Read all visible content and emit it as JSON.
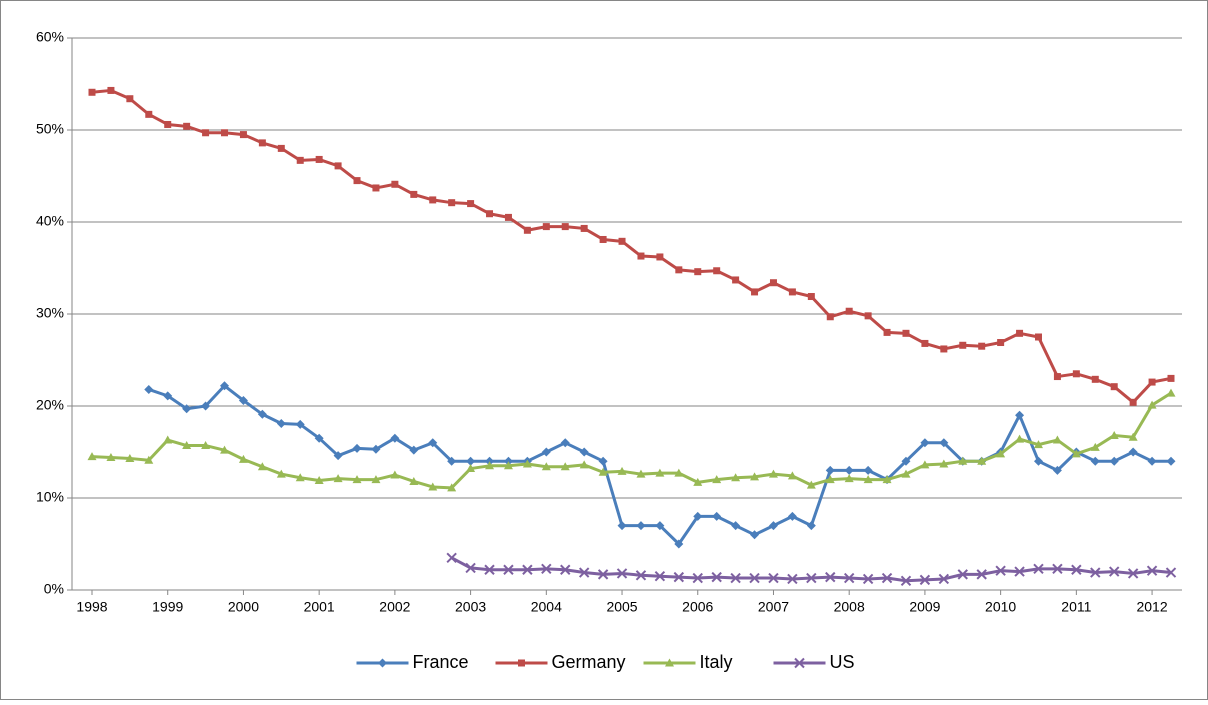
{
  "chart_data": {
    "type": "line",
    "categories": [
      "1998",
      null,
      null,
      null,
      "1999",
      null,
      null,
      null,
      "2000",
      null,
      null,
      null,
      "2001",
      null,
      null,
      null,
      "2002",
      null,
      null,
      null,
      "2003",
      null,
      null,
      null,
      "2004",
      null,
      null,
      null,
      "2005",
      null,
      null,
      null,
      "2006",
      null,
      null,
      null,
      "2007",
      null,
      null,
      null,
      "2008",
      null,
      null,
      null,
      "2009",
      null,
      null,
      null,
      "2010",
      null,
      null,
      null,
      "2011",
      null,
      null,
      null,
      "2012",
      null
    ],
    "series": [
      {
        "name": "France",
        "color": "#4a7ebb",
        "marker": "diamond",
        "values": [
          null,
          null,
          null,
          21.8,
          21.1,
          19.7,
          20.0,
          22.2,
          20.6,
          19.1,
          18.1,
          18.0,
          16.5,
          14.6,
          15.4,
          15.3,
          16.5,
          15.2,
          16.0,
          14.0,
          14.0,
          14.0,
          14.0,
          14.0,
          15.0,
          16.0,
          15.0,
          14.0,
          7.0,
          7.0,
          7.0,
          5.0,
          8.0,
          8.0,
          7.0,
          6.0,
          7.0,
          8.0,
          7.0,
          13.0,
          13.0,
          13.0,
          12.0,
          14.0,
          16.0,
          16.0,
          14.0,
          14.0,
          15.0,
          19.0,
          14.0,
          13.0,
          15.0,
          14.0,
          14.0,
          15.0,
          14.0,
          14.0
        ]
      },
      {
        "name": "Germany",
        "color": "#be4b48",
        "marker": "square",
        "values": [
          54.1,
          54.3,
          53.4,
          51.7,
          50.6,
          50.4,
          49.7,
          49.7,
          49.5,
          48.6,
          48.0,
          46.7,
          46.8,
          46.1,
          44.5,
          43.7,
          44.1,
          43.0,
          42.4,
          42.1,
          42.0,
          40.9,
          40.5,
          39.1,
          39.5,
          39.5,
          39.3,
          38.1,
          37.9,
          36.3,
          36.2,
          34.8,
          34.6,
          34.7,
          33.7,
          32.4,
          33.4,
          32.4,
          31.9,
          29.7,
          30.3,
          29.8,
          28.0,
          27.9,
          26.8,
          26.2,
          26.6,
          26.5,
          26.9,
          27.9,
          27.5,
          23.2,
          23.5,
          22.9,
          22.1,
          20.4,
          22.6,
          23.0
        ]
      },
      {
        "name": "Italy",
        "color": "#98b954",
        "marker": "triangle",
        "values": [
          14.5,
          14.4,
          14.3,
          14.1,
          16.3,
          15.7,
          15.7,
          15.2,
          14.2,
          13.4,
          12.6,
          12.2,
          11.9,
          12.1,
          12.0,
          12.0,
          12.5,
          11.8,
          11.2,
          11.1,
          13.2,
          13.5,
          13.5,
          13.7,
          13.4,
          13.4,
          13.6,
          12.8,
          12.9,
          12.6,
          12.7,
          12.7,
          11.7,
          12.0,
          12.2,
          12.3,
          12.6,
          12.4,
          11.4,
          12.0,
          12.1,
          12.0,
          12.0,
          12.6,
          13.6,
          13.7,
          14.0,
          14.0,
          14.8,
          16.4,
          15.8,
          16.3,
          14.8,
          15.5,
          16.8,
          16.6,
          20.1,
          21.4
        ]
      },
      {
        "name": "US",
        "color": "#7d60a0",
        "marker": "x",
        "values": [
          null,
          null,
          null,
          null,
          null,
          null,
          null,
          null,
          null,
          null,
          null,
          null,
          null,
          null,
          null,
          null,
          null,
          null,
          null,
          3.5,
          2.4,
          2.2,
          2.2,
          2.2,
          2.3,
          2.2,
          1.9,
          1.7,
          1.8,
          1.6,
          1.5,
          1.4,
          1.3,
          1.4,
          1.3,
          1.3,
          1.3,
          1.2,
          1.3,
          1.4,
          1.3,
          1.2,
          1.3,
          1.0,
          1.1,
          1.2,
          1.7,
          1.7,
          2.1,
          2.0,
          2.3,
          2.3,
          2.2,
          1.9,
          2.0,
          1.8,
          2.1,
          1.9
        ]
      }
    ],
    "ylim": [
      0,
      60
    ],
    "yticks": [
      {
        "value": 0,
        "label": "0%"
      },
      {
        "value": 10,
        "label": "10%"
      },
      {
        "value": 20,
        "label": "20%"
      },
      {
        "value": 30,
        "label": "30%"
      },
      {
        "value": 40,
        "label": "40%"
      },
      {
        "value": 50,
        "label": "50%"
      },
      {
        "value": 60,
        "label": "60%"
      }
    ],
    "grid": true,
    "legend": "bottom"
  }
}
